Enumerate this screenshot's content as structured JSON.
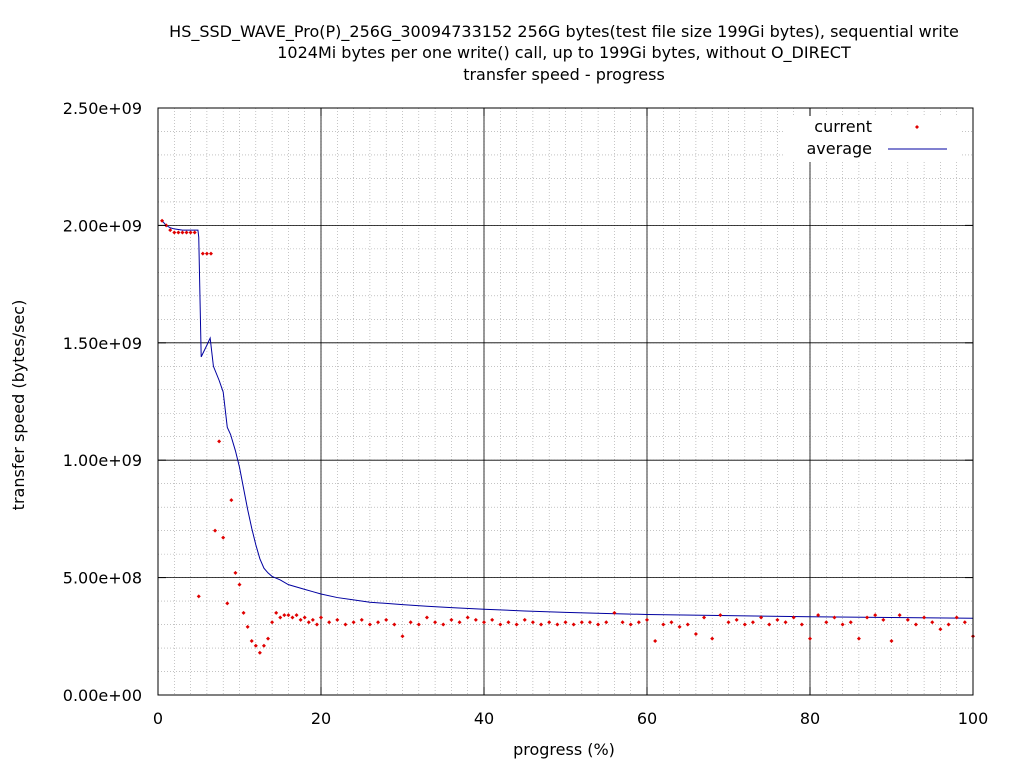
{
  "chart_data": {
    "type": "scatter",
    "title_lines": [
      "HS_SSD_WAVE_Pro(P)_256G_30094733152 256G bytes(test file size 199Gi bytes), sequential write",
      "1024Mi bytes per one write() call, up to 199Gi bytes, without O_DIRECT",
      "transfer speed - progress"
    ],
    "xlabel": "progress (%)",
    "ylabel": "transfer speed (bytes/sec)",
    "xlim": [
      0,
      100
    ],
    "ylim": [
      0,
      2500000000
    ],
    "x_ticks": [
      0,
      20,
      40,
      60,
      80,
      100
    ],
    "x_tick_labels": [
      "0",
      "20",
      "40",
      "60",
      "80",
      "100"
    ],
    "y_ticks": [
      0,
      500000000,
      1000000000,
      1500000000,
      2000000000,
      2500000000
    ],
    "y_tick_labels": [
      "0.00e+00",
      "5.00e+08",
      "1.00e+09",
      "1.50e+09",
      "2.00e+09",
      "2.50e+09"
    ],
    "major_grid": true,
    "minor_grid": true,
    "legend_position": "top-right",
    "colors": {
      "current": "#e00000",
      "average": "#0000a0",
      "grid_major": "#000000",
      "grid_minor": "#a0a0a0"
    },
    "series": [
      {
        "name": "current",
        "style": "points",
        "x": [
          0.5,
          1.0,
          1.5,
          2.0,
          2.5,
          3.0,
          3.5,
          4.0,
          4.5,
          5.0,
          5.5,
          6.0,
          6.5,
          7.0,
          7.5,
          8.0,
          8.5,
          9.0,
          9.5,
          10.0,
          10.5,
          11.0,
          11.5,
          12.0,
          12.5,
          13.0,
          13.5,
          14.0,
          14.5,
          15.0,
          15.5,
          16.0,
          16.5,
          17.0,
          17.5,
          18.0,
          18.5,
          19.0,
          19.5,
          20.0,
          21.0,
          22.0,
          23.0,
          24.0,
          25.0,
          26.0,
          27.0,
          28.0,
          29.0,
          30.0,
          31.0,
          32.0,
          33.0,
          34.0,
          35.0,
          36.0,
          37.0,
          38.0,
          39.0,
          40.0,
          41.0,
          42.0,
          43.0,
          44.0,
          45.0,
          46.0,
          47.0,
          48.0,
          49.0,
          50.0,
          51.0,
          52.0,
          53.0,
          54.0,
          55.0,
          56.0,
          57.0,
          58.0,
          59.0,
          60.0,
          61.0,
          62.0,
          63.0,
          64.0,
          65.0,
          66.0,
          67.0,
          68.0,
          69.0,
          70.0,
          71.0,
          72.0,
          73.0,
          74.0,
          75.0,
          76.0,
          77.0,
          78.0,
          79.0,
          80.0,
          81.0,
          82.0,
          83.0,
          84.0,
          85.0,
          86.0,
          87.0,
          88.0,
          89.0,
          90.0,
          91.0,
          92.0,
          93.0,
          94.0,
          95.0,
          96.0,
          97.0,
          98.0,
          99.0,
          100.0
        ],
        "y": [
          2020000000,
          2000000000,
          1980000000,
          1970000000,
          1970000000,
          1970000000,
          1970000000,
          1970000000,
          1970000000,
          420000000,
          1880000000,
          1880000000,
          1880000000,
          700000000,
          1080000000,
          670000000,
          390000000,
          830000000,
          520000000,
          470000000,
          350000000,
          290000000,
          230000000,
          210000000,
          180000000,
          210000000,
          240000000,
          310000000,
          350000000,
          330000000,
          340000000,
          340000000,
          330000000,
          340000000,
          320000000,
          330000000,
          310000000,
          320000000,
          300000000,
          330000000,
          310000000,
          320000000,
          300000000,
          310000000,
          320000000,
          300000000,
          310000000,
          320000000,
          300000000,
          250000000,
          310000000,
          300000000,
          330000000,
          310000000,
          300000000,
          320000000,
          310000000,
          330000000,
          320000000,
          310000000,
          320000000,
          300000000,
          310000000,
          300000000,
          320000000,
          310000000,
          300000000,
          310000000,
          300000000,
          310000000,
          300000000,
          310000000,
          310000000,
          300000000,
          310000000,
          350000000,
          310000000,
          300000000,
          310000000,
          320000000,
          230000000,
          300000000,
          310000000,
          290000000,
          300000000,
          260000000,
          330000000,
          240000000,
          340000000,
          310000000,
          320000000,
          300000000,
          310000000,
          330000000,
          300000000,
          320000000,
          310000000,
          330000000,
          300000000,
          240000000,
          340000000,
          310000000,
          330000000,
          300000000,
          310000000,
          240000000,
          330000000,
          340000000,
          320000000,
          230000000,
          340000000,
          320000000,
          300000000,
          330000000,
          310000000,
          280000000,
          300000000,
          330000000,
          310000000,
          250000000
        ]
      },
      {
        "name": "average",
        "style": "line",
        "x": [
          0.5,
          1.0,
          1.5,
          2.0,
          3.0,
          4.0,
          4.9,
          5.0,
          5.3,
          6.0,
          6.4,
          6.8,
          7.5,
          8.0,
          8.5,
          8.9,
          9.5,
          10.0,
          10.5,
          11.0,
          11.5,
          12.0,
          12.5,
          13.0,
          13.5,
          14.0,
          15.0,
          16.0,
          17.0,
          18.0,
          19.0,
          20.0,
          22.0,
          24.0,
          26.0,
          28.0,
          30.0,
          33.0,
          36.0,
          40.0,
          45.0,
          50.0,
          55.0,
          60.0,
          70.0,
          80.0,
          90.0,
          100.0
        ],
        "y": [
          2020000000,
          2000000000,
          1990000000,
          1985000000,
          1980000000,
          1980000000,
          1980000000,
          1950000000,
          1440000000,
          1490000000,
          1520000000,
          1400000000,
          1340000000,
          1290000000,
          1140000000,
          1110000000,
          1040000000,
          970000000,
          880000000,
          790000000,
          710000000,
          640000000,
          580000000,
          540000000,
          520000000,
          505000000,
          490000000,
          470000000,
          460000000,
          450000000,
          440000000,
          430000000,
          415000000,
          405000000,
          395000000,
          390000000,
          385000000,
          378000000,
          372000000,
          365000000,
          358000000,
          352000000,
          347000000,
          343000000,
          338000000,
          333000000,
          330000000,
          327000000
        ]
      }
    ]
  }
}
